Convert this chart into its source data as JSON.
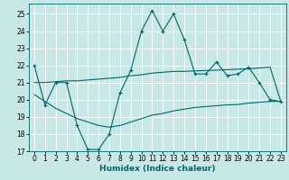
{
  "xlabel": "Humidex (Indice chaleur)",
  "background_color": "#c8e8e8",
  "grid_color": "#ffffff",
  "line_color": "#006666",
  "xlim": [
    -0.5,
    23.5
  ],
  "ylim": [
    17,
    25.6
  ],
  "yticks": [
    17,
    18,
    19,
    20,
    21,
    22,
    23,
    24,
    25
  ],
  "xticks": [
    0,
    1,
    2,
    3,
    4,
    5,
    6,
    7,
    8,
    9,
    10,
    11,
    12,
    13,
    14,
    15,
    16,
    17,
    18,
    19,
    20,
    21,
    22,
    23
  ],
  "line1_x": [
    0,
    1,
    2,
    3,
    4,
    5,
    6,
    7,
    8,
    9,
    10,
    11,
    12,
    13,
    14,
    15,
    16,
    17,
    18,
    19,
    20,
    21,
    22,
    23
  ],
  "line1_y": [
    22.0,
    19.7,
    21.0,
    21.0,
    18.5,
    17.1,
    17.1,
    18.0,
    20.4,
    21.7,
    24.0,
    25.2,
    24.0,
    25.0,
    23.5,
    21.5,
    21.5,
    22.2,
    21.4,
    21.5,
    21.9,
    21.0,
    20.0,
    19.9
  ],
  "line2_x": [
    0,
    1,
    2,
    3,
    4,
    5,
    6,
    7,
    8,
    9,
    10,
    11,
    12,
    13,
    14,
    15,
    16,
    17,
    18,
    19,
    20,
    21,
    22,
    23
  ],
  "line2_y": [
    21.0,
    21.0,
    21.05,
    21.1,
    21.1,
    21.15,
    21.2,
    21.25,
    21.3,
    21.4,
    21.45,
    21.55,
    21.6,
    21.65,
    21.65,
    21.68,
    21.7,
    21.72,
    21.75,
    21.78,
    21.8,
    21.85,
    21.9,
    19.9
  ],
  "line3_x": [
    0,
    1,
    2,
    3,
    4,
    5,
    6,
    7,
    8,
    9,
    10,
    11,
    12,
    13,
    14,
    15,
    16,
    17,
    18,
    19,
    20,
    21,
    22,
    23
  ],
  "line3_y": [
    20.3,
    19.9,
    19.5,
    19.2,
    18.9,
    18.7,
    18.5,
    18.4,
    18.5,
    18.7,
    18.9,
    19.1,
    19.2,
    19.35,
    19.45,
    19.55,
    19.6,
    19.65,
    19.7,
    19.72,
    19.8,
    19.85,
    19.9,
    19.9
  ],
  "tick_fontsize": 5.5,
  "xlabel_fontsize": 6.5
}
